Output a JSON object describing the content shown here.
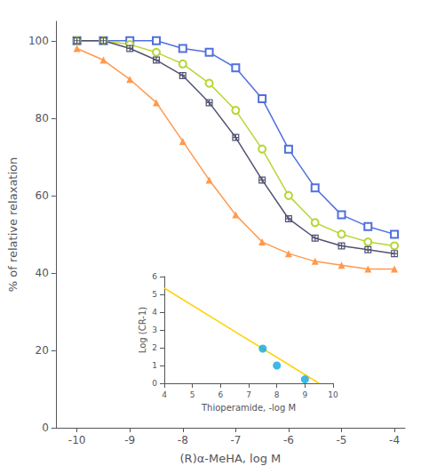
{
  "chart_data": [
    {
      "type": "line",
      "xlabel": "(R)α-MeHA, log M",
      "ylabel": "% of relative relaxation",
      "x": [
        -10,
        -9.5,
        -9,
        -8.5,
        -8,
        -7.5,
        -7,
        -6.5,
        -6,
        -5.5,
        -5,
        -4.5,
        -4
      ],
      "xlim": [
        -10.4,
        -3.8
      ],
      "ylim": [
        0,
        105
      ],
      "xticks": [
        -10,
        -9,
        -8,
        -7,
        -6,
        -5,
        -4
      ],
      "yticks": [
        0,
        20,
        40,
        60,
        80,
        100
      ],
      "grid": false,
      "series": [
        {
          "marker": "square_open",
          "values": [
            100,
            100,
            100,
            100,
            98,
            97,
            93,
            85,
            72,
            62,
            55,
            52,
            50
          ]
        },
        {
          "marker": "circle_open",
          "values": [
            100,
            100,
            99,
            97,
            94,
            89,
            82,
            72,
            60,
            53,
            50,
            48,
            47
          ]
        },
        {
          "marker": "square_cross",
          "values": [
            100,
            100,
            98,
            95,
            91,
            84,
            75,
            64,
            54,
            49,
            47,
            46,
            45
          ]
        },
        {
          "marker": "triangle",
          "values": [
            98,
            95,
            90,
            84,
            74,
            64,
            55,
            48,
            45,
            43,
            42,
            41,
            41
          ]
        }
      ]
    },
    {
      "type": "scatter",
      "xlabel": "Thioperamide, -log M",
      "ylabel": "Log (CR-1)",
      "xlim": [
        4,
        10
      ],
      "ylim": [
        0,
        6
      ],
      "xticks": [
        4,
        5,
        6,
        7,
        8,
        9,
        10
      ],
      "yticks": [
        0,
        1,
        2,
        3,
        4,
        5,
        6
      ],
      "grid": false,
      "series": [
        {
          "type": "scatter",
          "marker": "circle",
          "x": [
            7.5,
            8.0,
            9.0
          ],
          "values": [
            1.95,
            1.0,
            0.22
          ]
        },
        {
          "type": "line",
          "x": [
            4.0,
            9.5
          ],
          "values": [
            5.35,
            0.0
          ]
        }
      ]
    }
  ]
}
